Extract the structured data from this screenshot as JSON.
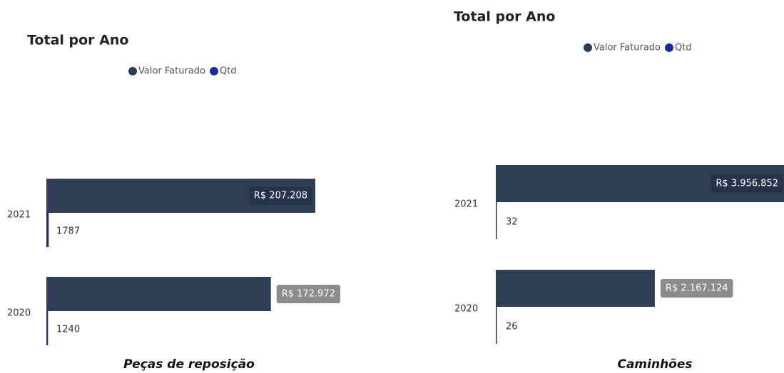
{
  "chart_data": [
    {
      "type": "bar",
      "title": "Total por Ano",
      "caption": "Peças de reposição",
      "categories": [
        "2021",
        "2020"
      ],
      "series": [
        {
          "name": "Valor Faturado",
          "color": "#2e3f55",
          "values": [
            207208,
            172972
          ],
          "value_labels": [
            "R$ 207.208",
            "R$ 172.972"
          ]
        },
        {
          "name": "Qtd",
          "color": "#1a2aa0",
          "values": [
            1787,
            1240
          ]
        }
      ]
    },
    {
      "type": "bar",
      "title": "Total por Ano",
      "caption": "Caminhões",
      "categories": [
        "2021",
        "2020"
      ],
      "series": [
        {
          "name": "Valor Faturado",
          "color": "#2e3f55",
          "values": [
            3956852,
            2167124
          ],
          "value_labels": [
            "R$ 3.956.852",
            "R$ 2.167.124"
          ]
        },
        {
          "name": "Qtd",
          "color": "#1a2aa0",
          "values": [
            32,
            26
          ]
        }
      ]
    }
  ]
}
